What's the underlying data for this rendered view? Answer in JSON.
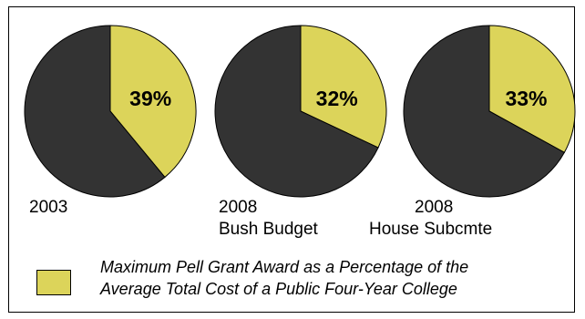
{
  "chart_data": [
    {
      "type": "pie",
      "caption": [
        "2003"
      ],
      "slices": [
        {
          "label": "39%",
          "value": 39,
          "color": "#dcd45a"
        },
        {
          "value": 61,
          "color": "#333333"
        }
      ]
    },
    {
      "type": "pie",
      "caption": [
        "2008",
        "Bush Budget"
      ],
      "slices": [
        {
          "label": "32%",
          "value": 32,
          "color": "#dcd45a"
        },
        {
          "value": 68,
          "color": "#333333"
        }
      ]
    },
    {
      "type": "pie",
      "caption": [
        "2008",
        "House Subcmte"
      ],
      "slices": [
        {
          "label": "33%",
          "value": 33,
          "color": "#dcd45a"
        },
        {
          "value": 67,
          "color": "#333333"
        }
      ]
    }
  ],
  "legend": {
    "color": "#dcd45a",
    "lines": [
      "Maximum Pell Grant Award as a Percentage of the",
      "Average Total Cost of a Public Four-Year College"
    ]
  }
}
